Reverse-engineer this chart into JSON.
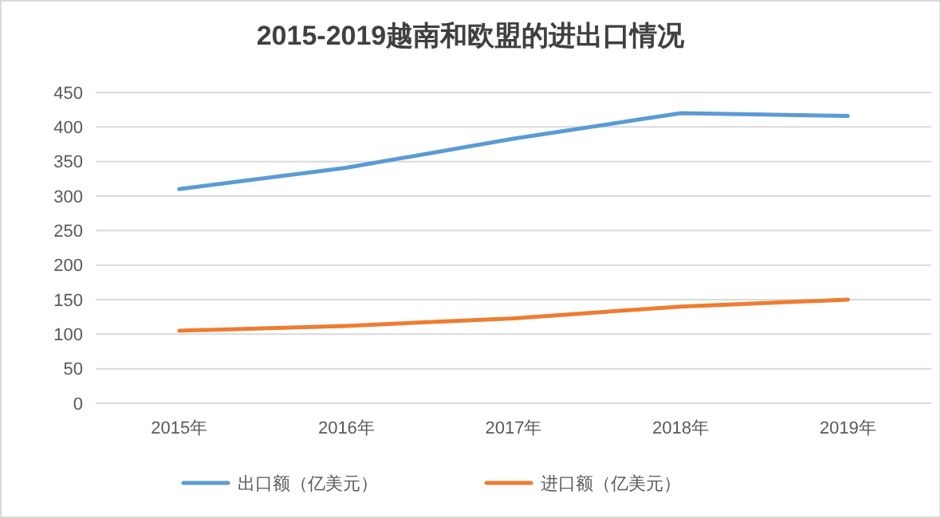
{
  "chart_data": {
    "type": "line",
    "title": "2015-2019越南和欧盟的进出口情况",
    "categories": [
      "2015年",
      "2016年",
      "2017年",
      "2018年",
      "2019年"
    ],
    "series": [
      {
        "name": "出口额（亿美元）",
        "color": "#5b9bd5",
        "values": [
          310,
          341,
          383,
          420,
          416
        ]
      },
      {
        "name": "进口额（亿美元）",
        "color": "#ed7d31",
        "values": [
          105,
          112,
          123,
          140,
          150
        ]
      }
    ],
    "ylim": [
      0,
      450
    ],
    "yticks": [
      0,
      50,
      100,
      150,
      200,
      250,
      300,
      350,
      400,
      450
    ],
    "grid": "y",
    "legend": "bottom",
    "marker": "none",
    "line_style": "solid"
  }
}
